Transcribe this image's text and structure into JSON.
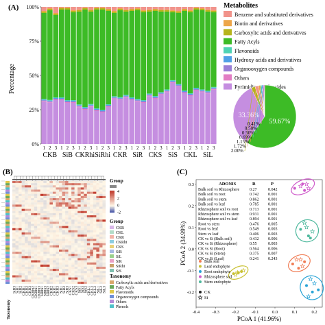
{
  "panels": {
    "a": "(A)",
    "b": "(B)",
    "c": "(C)"
  },
  "chart_data": [
    {
      "type": "bar",
      "stacked": true,
      "panel": "A",
      "ylabel": "Percentage",
      "yticks": [
        "0%",
        "25%",
        "50%",
        "75%",
        "100%"
      ],
      "ylim": [
        0,
        100
      ],
      "groups": [
        "CKB",
        "SiB",
        "CKRhi",
        "SiRhi",
        "CKR",
        "SiR",
        "CKS",
        "SiS",
        "CKL",
        "SiL"
      ],
      "replicate_labels": [
        "1",
        "2",
        "3"
      ],
      "legend_title": "Metabolites",
      "legend_position": "top-right",
      "series": [
        {
          "name": "Pyrimidine nucleosides",
          "color": "#c58ee0",
          "values": [
            31,
            30,
            32,
            32,
            30,
            30,
            27,
            25,
            27,
            24,
            23,
            27,
            33,
            32,
            34,
            32,
            31,
            30,
            35,
            33,
            36,
            38,
            45,
            42,
            37,
            35,
            39,
            38,
            37,
            40
          ]
        },
        {
          "name": "Others",
          "color": "#e27ec4",
          "values": [
            0.5,
            0.5,
            0.5,
            0.5,
            0.5,
            0.5,
            0.5,
            0.5,
            0.5,
            0.5,
            0.5,
            0.5,
            0.5,
            0.5,
            0.5,
            0.5,
            0.5,
            0.5,
            0.5,
            0.5,
            0.5,
            0.5,
            0.5,
            0.5,
            0.5,
            0.5,
            0.5,
            0.5,
            0.5,
            0.5
          ]
        },
        {
          "name": "Organooxygen compounds",
          "color": "#9b7fd6",
          "values": [
            0.5,
            0.5,
            0.5,
            0.5,
            0.5,
            0.5,
            0.5,
            0.5,
            0.5,
            0.5,
            0.5,
            0.5,
            0.5,
            0.5,
            0.5,
            0.5,
            0.5,
            0.5,
            0.5,
            0.5,
            0.5,
            0.5,
            0.5,
            0.5,
            0.5,
            0.5,
            0.5,
            0.5,
            0.5,
            0.5
          ]
        },
        {
          "name": "Hydroxy acids and derivatives",
          "color": "#4fa0e6",
          "values": [
            0.5,
            0.5,
            0.5,
            0.5,
            0.5,
            0.5,
            0.5,
            0.5,
            0.5,
            0.5,
            0.5,
            0.5,
            0.5,
            0.5,
            0.5,
            0.5,
            0.5,
            0.5,
            0.5,
            0.5,
            0.5,
            0.5,
            0.5,
            0.5,
            0.5,
            0.5,
            0.5,
            0.5,
            0.5,
            0.5
          ]
        },
        {
          "name": "Flavonoids",
          "color": "#4ed3b4",
          "values": [
            0.5,
            0.5,
            0.5,
            0.5,
            0.5,
            0.5,
            0.5,
            0.5,
            0.5,
            0.5,
            0.5,
            0.5,
            0.5,
            0.5,
            0.5,
            0.5,
            0.5,
            0.5,
            0.5,
            0.5,
            0.5,
            0.5,
            0.5,
            0.5,
            0.5,
            0.5,
            0.5,
            0.5,
            0.5,
            0.5
          ]
        },
        {
          "name": "Fatty Acyls",
          "color": "#3dbb26",
          "values": [
            63,
            65,
            60,
            64,
            66,
            64,
            68,
            71,
            67,
            72,
            73,
            68,
            61,
            63,
            61,
            63,
            65,
            64,
            60,
            62,
            59,
            57,
            50,
            52,
            58,
            59,
            57,
            58,
            58,
            55
          ]
        },
        {
          "name": "Carboxylic acids and derivatives",
          "color": "#b6b41c",
          "values": [
            1,
            1,
            1,
            1,
            1,
            1,
            1,
            1,
            1,
            1,
            1,
            1,
            1,
            1,
            1,
            1,
            1,
            1,
            1,
            1,
            1,
            1,
            1,
            1,
            1,
            1,
            1,
            1,
            1,
            1
          ]
        },
        {
          "name": "Biotin and derivatives",
          "color": "#eda64a",
          "values": [
            0.5,
            0.5,
            0.5,
            0.5,
            0.5,
            0.5,
            0.5,
            0.5,
            0.5,
            0.5,
            0.5,
            0.5,
            0.5,
            0.5,
            0.5,
            0.5,
            0.5,
            0.5,
            0.5,
            0.5,
            0.5,
            0.5,
            0.5,
            0.5,
            0.5,
            0.5,
            0.5,
            0.5,
            0.5,
            0.5
          ]
        },
        {
          "name": "Benzene and substituted derivatives",
          "color": "#f1938b",
          "values": [
            3,
            1,
            4.5,
            0.5,
            0.5,
            2.5,
            2,
            0.5,
            2,
            0.5,
            0.5,
            1.5,
            3,
            1,
            2,
            1.5,
            1,
            2.5,
            2,
            1.5,
            2,
            2,
            2.5,
            3,
            1.5,
            2.5,
            0.5,
            1,
            2,
            2.5
          ]
        }
      ]
    },
    {
      "type": "pie",
      "panel": "A-inset",
      "slices": [
        {
          "name": "Fatty Acyls",
          "value": 59.67,
          "label": "59.67%",
          "color": "#3dbb26"
        },
        {
          "name": "Pyrimidine nucleosides",
          "value": 33.36,
          "label": "33.36%",
          "color": "#c58ee0"
        },
        {
          "name": "Carboxylic acids and derivatives",
          "value": 2.0,
          "label": "2.00%",
          "color": "#b6b41c"
        },
        {
          "name": "Benzene and substituted derivatives",
          "value": 1.72,
          "label": "1.72%",
          "color": "#f1938b"
        },
        {
          "name": "Biotin and derivatives",
          "value": 1.15,
          "label": "1.15%",
          "color": "#eda64a"
        },
        {
          "name": "Flavonoids",
          "value": 0.69,
          "label": "0.69%",
          "color": "#4ed3b4"
        },
        {
          "name": "Hydroxy acids and derivatives",
          "value": 0.5,
          "label": "0.50%",
          "color": "#4fa0e6"
        },
        {
          "name": "Organooxygen compounds",
          "value": 0.5,
          "label": "0.50%",
          "color": "#9b7fd6"
        },
        {
          "name": "Others",
          "value": 0.41,
          "label": "0.41%",
          "color": "#e27ec4"
        }
      ]
    },
    {
      "type": "heatmap",
      "panel": "B",
      "color_scale": {
        "title": "",
        "ticks": [
          "4",
          "2",
          "0",
          "-2"
        ],
        "low": "#2c3e9e",
        "mid": "#fff8e8",
        "high": "#c0392b"
      },
      "column_labels": [
        "SiB3",
        "SiB1",
        "SiB2",
        "CKB1",
        "CKB2",
        "CKB3",
        "CKRhi2",
        "CKRhi1",
        "CKRhi3",
        "SiRhi1",
        "SiRhi3",
        "SiRhi2",
        "CKR2",
        "CKR1",
        "CKR3",
        "SiR1",
        "SiR2",
        "SiR3",
        "CKS1",
        "CKS2",
        "CKS3",
        "SiS1",
        "SiS3",
        "SiS2",
        "CKL1",
        "CKL3",
        "CKL2",
        "SiL1",
        "SiL2",
        "SiL3"
      ],
      "row_annotation_title": "Taxonomy",
      "legends": {
        "group_title": "Group",
        "group_legend_title": "Group",
        "groups": [
          {
            "name": "CKB",
            "color": "#d9b8e8"
          },
          {
            "name": "CKL",
            "color": "#b3dcc8"
          },
          {
            "name": "CKR",
            "color": "#f2b4a8"
          },
          {
            "name": "CKRhi",
            "color": "#8ccde0"
          },
          {
            "name": "CKS",
            "color": "#e8d078"
          },
          {
            "name": "SiB",
            "color": "#a6b9e2"
          },
          {
            "name": "SiL",
            "color": "#9ad08c"
          },
          {
            "name": "SiR",
            "color": "#eaa0c4"
          },
          {
            "name": "SiRhi",
            "color": "#c8a06a"
          },
          {
            "name": "SiS",
            "color": "#7fc0b0"
          }
        ],
        "taxonomy_title": "Taxonomy",
        "taxonomy": [
          {
            "name": "Carboxylic acids and derivatives",
            "color": "#d9a86b"
          },
          {
            "name": "Fatty Acyls",
            "color": "#6aa95a"
          },
          {
            "name": "Flavonoids",
            "color": "#e0c848"
          },
          {
            "name": "Organooxygen compounds",
            "color": "#6f8fd8"
          },
          {
            "name": "Others",
            "color": "#b48ad8"
          },
          {
            "name": "Phenols",
            "color": "#4ec0c8"
          }
        ]
      }
    },
    {
      "type": "scatter",
      "panel": "C",
      "xlabel": "PCoA 1 (41.96%)",
      "ylabel": "PCoA 2 (34.99%)",
      "xlim": [
        -0.4,
        0.24
      ],
      "ylim": [
        -0.27,
        0.32
      ],
      "xticks": [
        -0.4,
        -0.3,
        -0.2,
        -0.1,
        0.0,
        0.1,
        0.2
      ],
      "xtick_labels": [
        "-0.4",
        "-0.3",
        "-0.2",
        "-0.1",
        "0.0",
        "0.1",
        "0.2"
      ],
      "yticks": [
        -0.2,
        -0.1,
        0.0,
        0.1,
        0.2,
        0.3
      ],
      "ytick_labels": [
        "-0.2",
        "-0.1",
        "0.0",
        "0.1",
        "0.2",
        "0.3"
      ],
      "adonis": {
        "headers": [
          "ADONIS",
          "R",
          "P"
        ],
        "rows": [
          [
            "Bulk soil vs Rhizosphere",
            "0.27",
            "0.042"
          ],
          [
            "Bulk soil vs root",
            "0.742",
            "0.001"
          ],
          [
            "Bulk soil vs stem",
            "0.862",
            "0.001"
          ],
          [
            "Bulk soil vs leaf",
            "0.785",
            "0.001"
          ],
          [
            "Rhizosphere soil vs root",
            "0.713",
            "0.001"
          ],
          [
            "Rhizosphere soil vs stem",
            "0.931",
            "0.001"
          ],
          [
            "Rhizosphere soil vs leaf",
            "0.894",
            "0.001"
          ],
          [
            "Root vs stem",
            "0.476",
            "0.005"
          ],
          [
            "Root vs leaf",
            "0.549",
            "0.003"
          ],
          [
            "Stem vs leaf",
            "0.406",
            "0.003"
          ],
          [
            "CK vs Si (Bulk soil)",
            "0.432",
            "0.006"
          ],
          [
            "CK vs Si (Rhizosphere)",
            "0.55",
            "0.003"
          ],
          [
            "CK vs Si (Root)",
            "0.564",
            "0.006"
          ],
          [
            "CK vs Si (Stem)",
            "0.375",
            "0.007"
          ],
          [
            "CK vs Si (Leaf)",
            "0.241",
            "0.243"
          ]
        ]
      },
      "legend_position": "bottom-left",
      "series": [
        {
          "name": "Bulk soil",
          "color": "#f07c54",
          "points": [
            [
              0.09,
              -0.07
            ],
            [
              0.11,
              -0.05
            ],
            [
              0.12,
              -0.09
            ],
            [
              0.14,
              -0.08
            ],
            [
              0.15,
              -0.06
            ],
            [
              0.13,
              -0.05
            ]
          ]
        },
        {
          "name": "Leaf endophyte",
          "color": "#c9c133",
          "points": [
            [
              -0.21,
              -0.115
            ],
            [
              -0.19,
              -0.11
            ],
            [
              -0.17,
              -0.105
            ],
            [
              -0.2,
              -0.12
            ],
            [
              -0.185,
              -0.11
            ],
            [
              -0.16,
              -0.1
            ]
          ]
        },
        {
          "name": "Root endophyte",
          "color": "#27a3d6",
          "points": [
            [
              0.16,
              -0.17
            ],
            [
              0.18,
              -0.14
            ],
            [
              0.19,
              -0.2
            ],
            [
              0.2,
              -0.16
            ],
            [
              0.22,
              -0.19
            ],
            [
              0.17,
              -0.22
            ]
          ]
        },
        {
          "name": "Rhizosphere soil",
          "color": "#cf5ccb",
          "points": [
            [
              0.1,
              0.28
            ],
            [
              0.13,
              0.29
            ],
            [
              0.15,
              0.27
            ],
            [
              0.16,
              0.3
            ],
            [
              0.14,
              0.3
            ],
            [
              0.17,
              0.28
            ]
          ]
        },
        {
          "name": "Stem endophyte",
          "color": "#4cb89c",
          "points": [
            [
              0.13,
              0.09
            ],
            [
              0.15,
              0.12
            ],
            [
              0.17,
              0.06
            ],
            [
              0.19,
              0.08
            ],
            [
              0.18,
              0.05
            ],
            [
              0.16,
              0.1
            ]
          ]
        }
      ],
      "shape_legend": [
        {
          "name": "CK",
          "shape": "circle"
        },
        {
          "name": "Si",
          "shape": "star"
        }
      ]
    }
  ]
}
